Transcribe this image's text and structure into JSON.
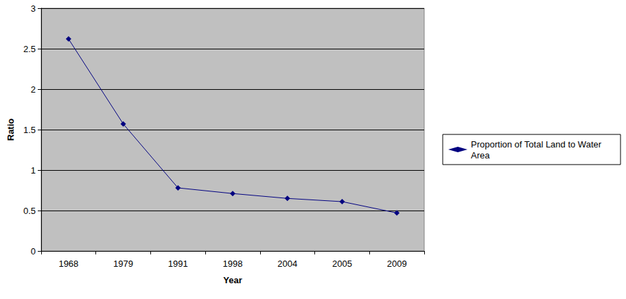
{
  "chart_data": {
    "type": "line",
    "categories": [
      "1968",
      "1979",
      "1991",
      "1998",
      "2004",
      "2005",
      "2009"
    ],
    "series": [
      {
        "name": "Proportion of Total Land to Water Area",
        "color": "#000080",
        "marker": "diamond",
        "values": [
          2.62,
          1.57,
          0.78,
          0.71,
          0.65,
          0.61,
          0.47
        ]
      }
    ],
    "x_label": "Year",
    "y_label": "Ratio",
    "ylim": [
      0,
      3
    ],
    "yticks": [
      0,
      0.5,
      1,
      1.5,
      2,
      2.5,
      3
    ],
    "grid": true,
    "legend": "right"
  }
}
